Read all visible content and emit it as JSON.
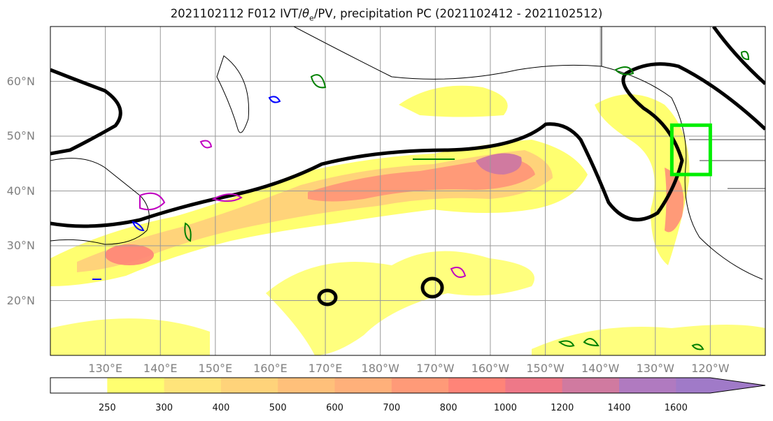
{
  "title": {
    "prefix": "2021102112 F012 IVT/",
    "theta": "θ",
    "sub": "e",
    "suffix": "/PV, precipitation PC (2021102412 - 2021102512)"
  },
  "map": {
    "lat_labels": [
      "60°N",
      "50°N",
      "40°N",
      "30°N",
      "20°N"
    ],
    "lon_labels": [
      "130°E",
      "140°E",
      "150°E",
      "160°E",
      "170°E",
      "180°W",
      "170°W",
      "160°W",
      "150°W",
      "140°W",
      "130°W",
      "120°W"
    ],
    "extent": {
      "lon_west": 120,
      "lon_east": 250,
      "lat_south": 10,
      "lat_north": 70
    },
    "target_box": {
      "lon_west": 233,
      "lon_east": 240,
      "lat_south": 43,
      "lat_north": 52
    }
  },
  "colorbar": {
    "ticks": [
      "250",
      "300",
      "400",
      "500",
      "600",
      "700",
      "800",
      "1000",
      "1200",
      "1400",
      "1600"
    ],
    "colors": [
      "#ffffff",
      "#ffff70",
      "#ffe47a",
      "#ffd37a",
      "#ffc07a",
      "#ffb07a",
      "#ff9a78",
      "#ff8478",
      "#ee7888",
      "#d07aa0",
      "#b07ac0",
      "#a07ac8"
    ]
  },
  "colors": {
    "pv_contour": "#000000",
    "theta_positive": "#008000",
    "theta_negative": "#0000ff",
    "pv_anom": "#c000c0",
    "box": "#00ee00",
    "coast": "#000000",
    "grid": "#999999"
  }
}
